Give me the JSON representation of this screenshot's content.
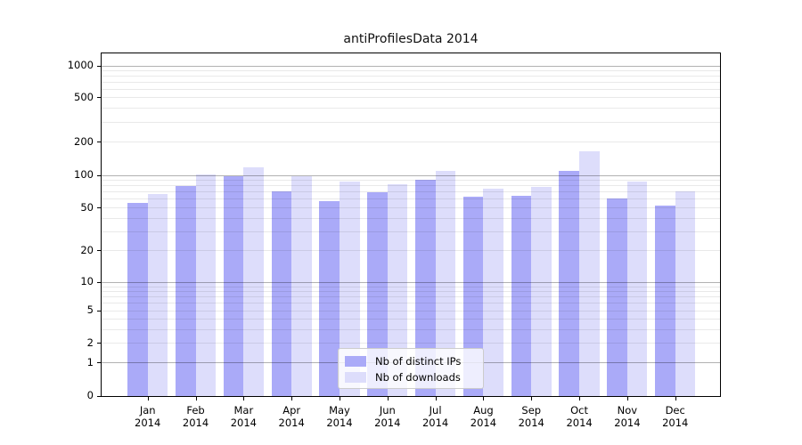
{
  "title": "antiProfilesData 2014",
  "colors": {
    "ips_bar": "#aaaaf8",
    "downloads_bar": "#ddddfb",
    "grid_major": "rgba(0,0,0,0.30)",
    "grid_minor": "rgba(0,0,0,0.085)",
    "axis": "#000000",
    "legend_border": "#cccccc"
  },
  "legend": {
    "items": [
      {
        "label": "Nb of distinct IPs",
        "series": "ips"
      },
      {
        "label": "Nb of downloads",
        "series": "downloads"
      }
    ]
  },
  "x_axis": {
    "months": [
      "Jan",
      "Feb",
      "Mar",
      "Apr",
      "May",
      "Jun",
      "Jul",
      "Aug",
      "Sep",
      "Oct",
      "Nov",
      "Dec"
    ],
    "year": "2014"
  },
  "y_axis": {
    "ticks": [
      1000,
      500,
      200,
      100,
      50,
      20,
      10,
      5,
      2,
      1,
      0
    ]
  },
  "chart_data": {
    "type": "bar",
    "title": "antiProfilesData 2014",
    "categories": [
      "Jan 2014",
      "Feb 2014",
      "Mar 2014",
      "Apr 2014",
      "May 2014",
      "Jun 2014",
      "Jul 2014",
      "Aug 2014",
      "Sep 2014",
      "Oct 2014",
      "Nov 2014",
      "Dec 2014"
    ],
    "series": [
      {
        "name": "Nb of distinct IPs",
        "color": "#aaaaf8",
        "values": [
          55,
          79,
          97,
          71,
          57,
          69,
          90,
          63,
          64,
          109,
          61,
          52
        ]
      },
      {
        "name": "Nb of downloads",
        "color": "#ddddfb",
        "values": [
          66,
          101,
          117,
          97,
          86,
          82,
          108,
          74,
          77,
          163,
          86,
          70
        ]
      }
    ],
    "xlabel": "",
    "ylabel": "",
    "yscale": "log-like (symlog of v+1)",
    "y_ticks": [
      0,
      1,
      2,
      5,
      10,
      20,
      50,
      100,
      200,
      500,
      1000
    ],
    "ylim": [
      0,
      1300
    ],
    "grid": "horizontal, major decades darker + minor log subdivisions faint, drawn over bars",
    "legend_position": "lower center inside plot"
  }
}
